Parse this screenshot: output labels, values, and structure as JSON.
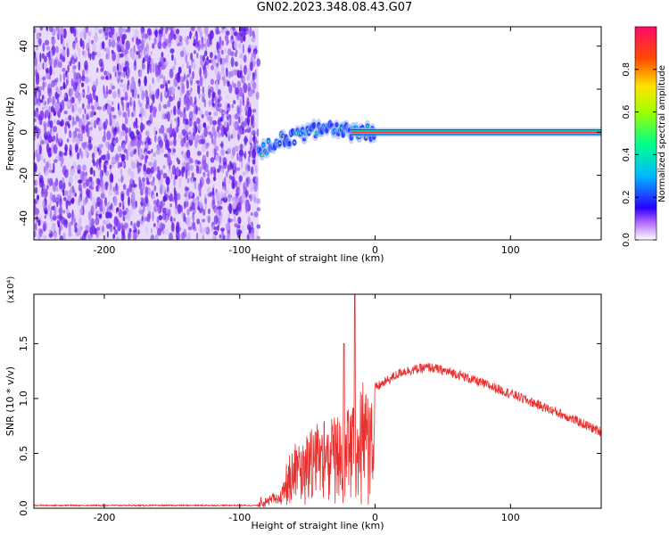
{
  "page": {
    "title": "GN02.2023.348.08.43.G07"
  },
  "chart_data": [
    {
      "type": "heatmap",
      "title": "GN02.2023.348.08.43.G07",
      "xlabel": "Height of straight line (km)",
      "ylabel": "Frequency (Hz)",
      "xlim": [
        -252,
        167
      ],
      "ylim": [
        -50,
        49
      ],
      "xticks": [
        -200,
        -100,
        0,
        100
      ],
      "yticks": [
        -40,
        -20,
        0,
        20,
        40
      ],
      "xtick_labels": [
        "-200",
        "-100",
        "0",
        "100"
      ],
      "ytick_labels": [
        "-40",
        "-20",
        "0",
        "20",
        "40"
      ],
      "noise_region_x": [
        -252,
        -86
      ],
      "signal_onset_x": -86,
      "signal_trend": [
        {
          "x": -86,
          "y": -9
        },
        {
          "x": -70,
          "y": -4
        },
        {
          "x": -50,
          "y": 0
        },
        {
          "x": -30,
          "y": 2
        },
        {
          "x": -15,
          "y": 0
        },
        {
          "x": 0,
          "y": 0
        },
        {
          "x": 167,
          "y": 0
        }
      ],
      "colorbar": {
        "label": "Normalized spectral amplitude",
        "range": [
          0,
          1
        ],
        "ticks": [
          0.0,
          0.2,
          0.4,
          0.6,
          0.8
        ],
        "tick_labels": [
          "0.0",
          "0.2",
          "0.4",
          "0.6",
          "0.8"
        ]
      },
      "grid": false
    },
    {
      "type": "line",
      "xlabel": "Height of straight line (km)",
      "ylabel": "SNR (10 * v/v)",
      "y_multiplier_label": "(x10⁴)",
      "xlim": [
        -252,
        167
      ],
      "ylim": [
        0,
        1.95
      ],
      "xticks": [
        -200,
        -100,
        0,
        100
      ],
      "yticks": [
        0,
        0.5,
        1.0,
        1.5
      ],
      "xtick_labels": [
        "-200",
        "-100",
        "0",
        "100"
      ],
      "ytick_labels": [
        "0.0",
        "0.5",
        "1.0",
        "1.5"
      ],
      "series_color": "#e8302e",
      "envelope": [
        {
          "x": -252,
          "y": 0.02
        },
        {
          "x": -86,
          "y": 0.02
        },
        {
          "x": -70,
          "y": 0.1
        },
        {
          "x": -62,
          "y": 0.6
        },
        {
          "x": -50,
          "y": 0.7
        },
        {
          "x": -40,
          "y": 0.75
        },
        {
          "x": -30,
          "y": 0.85
        },
        {
          "x": -20,
          "y": 0.95
        },
        {
          "x": -15,
          "y": 1.05
        },
        {
          "x": 0,
          "y": 1.1
        },
        {
          "x": 20,
          "y": 1.25
        },
        {
          "x": 40,
          "y": 1.29
        },
        {
          "x": 60,
          "y": 1.23
        },
        {
          "x": 80,
          "y": 1.14
        },
        {
          "x": 100,
          "y": 1.05
        },
        {
          "x": 120,
          "y": 0.95
        },
        {
          "x": 140,
          "y": 0.85
        },
        {
          "x": 167,
          "y": 0.7
        }
      ],
      "peaks": [
        {
          "x": -23,
          "y": 1.5
        },
        {
          "x": -15,
          "y": 1.95
        }
      ],
      "grid": false
    }
  ]
}
